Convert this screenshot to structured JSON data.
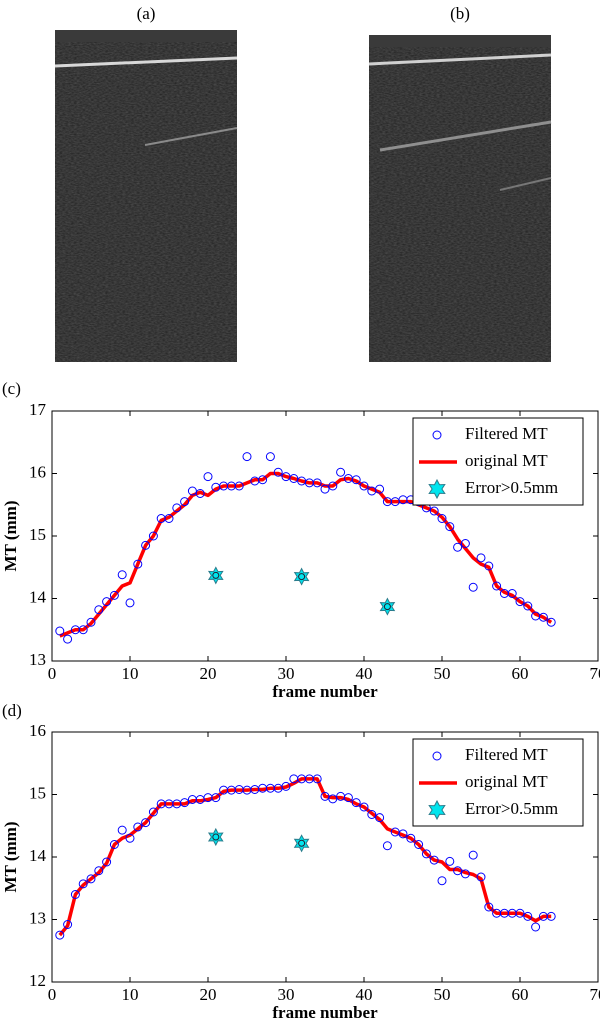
{
  "panel_labels": [
    "(a)",
    "(b)",
    "(c)",
    "(d)"
  ],
  "chart_data": [
    {
      "type": "line",
      "xlabel": "frame number",
      "ylabel": "MT (mm)",
      "xlim": [
        0,
        70
      ],
      "xticks": [
        0,
        10,
        20,
        30,
        40,
        50,
        60,
        70
      ],
      "ylim": [
        13,
        17
      ],
      "yticks": [
        13,
        14,
        15,
        16,
        17
      ],
      "legend": "upper right",
      "series": [
        {
          "name": "Filtered MT",
          "mode": "markers",
          "marker": "circle",
          "color": "#0000ff",
          "x": [
            1,
            2,
            3,
            4,
            5,
            6,
            7,
            8,
            9,
            10,
            11,
            12,
            13,
            14,
            15,
            16,
            17,
            18,
            19,
            20,
            21,
            22,
            23,
            24,
            25,
            26,
            27,
            28,
            29,
            30,
            31,
            32,
            33,
            34,
            35,
            36,
            37,
            38,
            39,
            40,
            41,
            42,
            43,
            44,
            45,
            46,
            47,
            48,
            49,
            50,
            51,
            52,
            53,
            54,
            55,
            56,
            57,
            58,
            59,
            60,
            61,
            62,
            63,
            64
          ],
          "values": [
            13.48,
            13.35,
            13.5,
            13.5,
            13.62,
            13.82,
            13.95,
            14.05,
            14.38,
            13.93,
            14.55,
            14.85,
            15.0,
            15.28,
            15.28,
            15.45,
            15.55,
            15.72,
            15.68,
            15.95,
            15.78,
            15.8,
            15.8,
            15.8,
            16.27,
            15.88,
            15.9,
            16.27,
            16.02,
            15.95,
            15.92,
            15.88,
            15.85,
            15.85,
            15.75,
            15.8,
            16.02,
            15.92,
            15.9,
            15.8,
            15.72,
            15.75,
            15.55,
            15.55,
            15.58,
            15.58,
            15.55,
            15.45,
            15.4,
            15.28,
            15.15,
            14.82,
            14.88,
            14.18,
            14.65,
            14.52,
            14.2,
            14.08,
            14.08,
            13.95,
            13.88,
            13.72,
            13.7,
            13.62
          ]
        },
        {
          "name": "original MT",
          "mode": "line",
          "color": "#ff0000",
          "x": [
            1,
            2,
            3,
            4,
            5,
            6,
            7,
            8,
            9,
            10,
            11,
            12,
            13,
            14,
            15,
            16,
            17,
            18,
            19,
            20,
            21,
            22,
            23,
            24,
            25,
            26,
            27,
            28,
            29,
            30,
            31,
            32,
            33,
            34,
            35,
            36,
            37,
            38,
            39,
            40,
            41,
            42,
            43,
            44,
            45,
            46,
            47,
            48,
            49,
            50,
            51,
            52,
            53,
            54,
            55,
            56,
            57,
            58,
            59,
            60,
            61,
            62,
            63,
            64
          ],
          "values": [
            13.4,
            13.45,
            13.5,
            13.5,
            13.6,
            13.75,
            13.9,
            14.05,
            14.2,
            14.25,
            14.55,
            14.85,
            15.0,
            15.25,
            15.3,
            15.4,
            15.5,
            15.65,
            15.7,
            15.65,
            15.75,
            15.8,
            15.8,
            15.8,
            15.85,
            15.9,
            15.9,
            16.0,
            16.0,
            15.95,
            15.92,
            15.88,
            15.85,
            15.85,
            15.8,
            15.8,
            15.9,
            15.92,
            15.88,
            15.8,
            15.75,
            15.7,
            15.55,
            15.55,
            15.55,
            15.55,
            15.5,
            15.45,
            15.4,
            15.3,
            15.15,
            14.95,
            14.8,
            14.65,
            14.55,
            14.5,
            14.2,
            14.1,
            14.05,
            13.95,
            13.88,
            13.75,
            13.7,
            13.62
          ]
        },
        {
          "name": "Error>0.5mm",
          "mode": "markers",
          "marker": "star",
          "color": "#00e5ee",
          "x": [
            21,
            32,
            43
          ],
          "values": [
            14.37,
            14.35,
            13.87
          ]
        }
      ]
    },
    {
      "type": "line",
      "xlabel": "frame number",
      "ylabel": "MT (mm)",
      "xlim": [
        0,
        70
      ],
      "xticks": [
        0,
        10,
        20,
        30,
        40,
        50,
        60,
        70
      ],
      "ylim": [
        12,
        16
      ],
      "yticks": [
        12,
        13,
        14,
        15,
        16
      ],
      "legend": "upper right",
      "series": [
        {
          "name": "Filtered MT",
          "mode": "markers",
          "marker": "circle",
          "color": "#0000ff",
          "x": [
            1,
            2,
            3,
            4,
            5,
            6,
            7,
            8,
            9,
            10,
            11,
            12,
            13,
            14,
            15,
            16,
            17,
            18,
            19,
            20,
            21,
            22,
            23,
            24,
            25,
            26,
            27,
            28,
            29,
            30,
            31,
            32,
            33,
            34,
            35,
            36,
            37,
            38,
            39,
            40,
            41,
            42,
            43,
            44,
            45,
            46,
            47,
            48,
            49,
            50,
            51,
            52,
            53,
            54,
            55,
            56,
            57,
            58,
            59,
            60,
            61,
            62,
            63,
            64
          ],
          "values": [
            12.75,
            12.92,
            13.4,
            13.57,
            13.65,
            13.78,
            13.92,
            14.2,
            14.43,
            14.3,
            14.48,
            14.55,
            14.72,
            14.85,
            14.85,
            14.85,
            14.87,
            14.92,
            14.92,
            14.95,
            14.95,
            15.07,
            15.07,
            15.08,
            15.07,
            15.08,
            15.1,
            15.1,
            15.1,
            15.13,
            15.25,
            15.25,
            15.25,
            15.25,
            14.97,
            14.93,
            14.97,
            14.95,
            14.87,
            14.8,
            14.68,
            14.63,
            14.18,
            14.4,
            14.37,
            14.3,
            14.2,
            14.05,
            13.95,
            13.62,
            13.93,
            13.78,
            13.73,
            14.03,
            13.68,
            13.2,
            13.1,
            13.1,
            13.1,
            13.1,
            13.05,
            12.88,
            13.05,
            13.05
          ]
        },
        {
          "name": "original MT",
          "mode": "line",
          "color": "#ff0000",
          "x": [
            1,
            2,
            3,
            4,
            5,
            6,
            7,
            8,
            9,
            10,
            11,
            12,
            13,
            14,
            15,
            16,
            17,
            18,
            19,
            20,
            21,
            22,
            23,
            24,
            25,
            26,
            27,
            28,
            29,
            30,
            31,
            32,
            33,
            34,
            35,
            36,
            37,
            38,
            39,
            40,
            41,
            42,
            43,
            44,
            45,
            46,
            47,
            48,
            49,
            50,
            51,
            52,
            53,
            54,
            55,
            56,
            57,
            58,
            59,
            60,
            61,
            62,
            63,
            64
          ],
          "values": [
            12.75,
            12.9,
            13.4,
            13.55,
            13.65,
            13.75,
            13.9,
            14.2,
            14.3,
            14.35,
            14.45,
            14.55,
            14.7,
            14.85,
            14.85,
            14.85,
            14.85,
            14.9,
            14.9,
            14.92,
            14.95,
            15.05,
            15.07,
            15.07,
            15.07,
            15.08,
            15.08,
            15.1,
            15.1,
            15.12,
            15.18,
            15.25,
            15.25,
            15.25,
            14.97,
            14.95,
            14.95,
            14.92,
            14.85,
            14.8,
            14.7,
            14.6,
            14.45,
            14.4,
            14.35,
            14.3,
            14.2,
            14.05,
            13.95,
            13.92,
            13.8,
            13.8,
            13.75,
            13.72,
            13.65,
            13.2,
            13.1,
            13.1,
            13.1,
            13.1,
            13.05,
            12.98,
            13.05,
            13.05
          ]
        },
        {
          "name": "Error>0.5mm",
          "mode": "markers",
          "marker": "star",
          "color": "#00e5ee",
          "x": [
            21,
            32
          ],
          "values": [
            14.32,
            14.22
          ]
        }
      ]
    }
  ]
}
